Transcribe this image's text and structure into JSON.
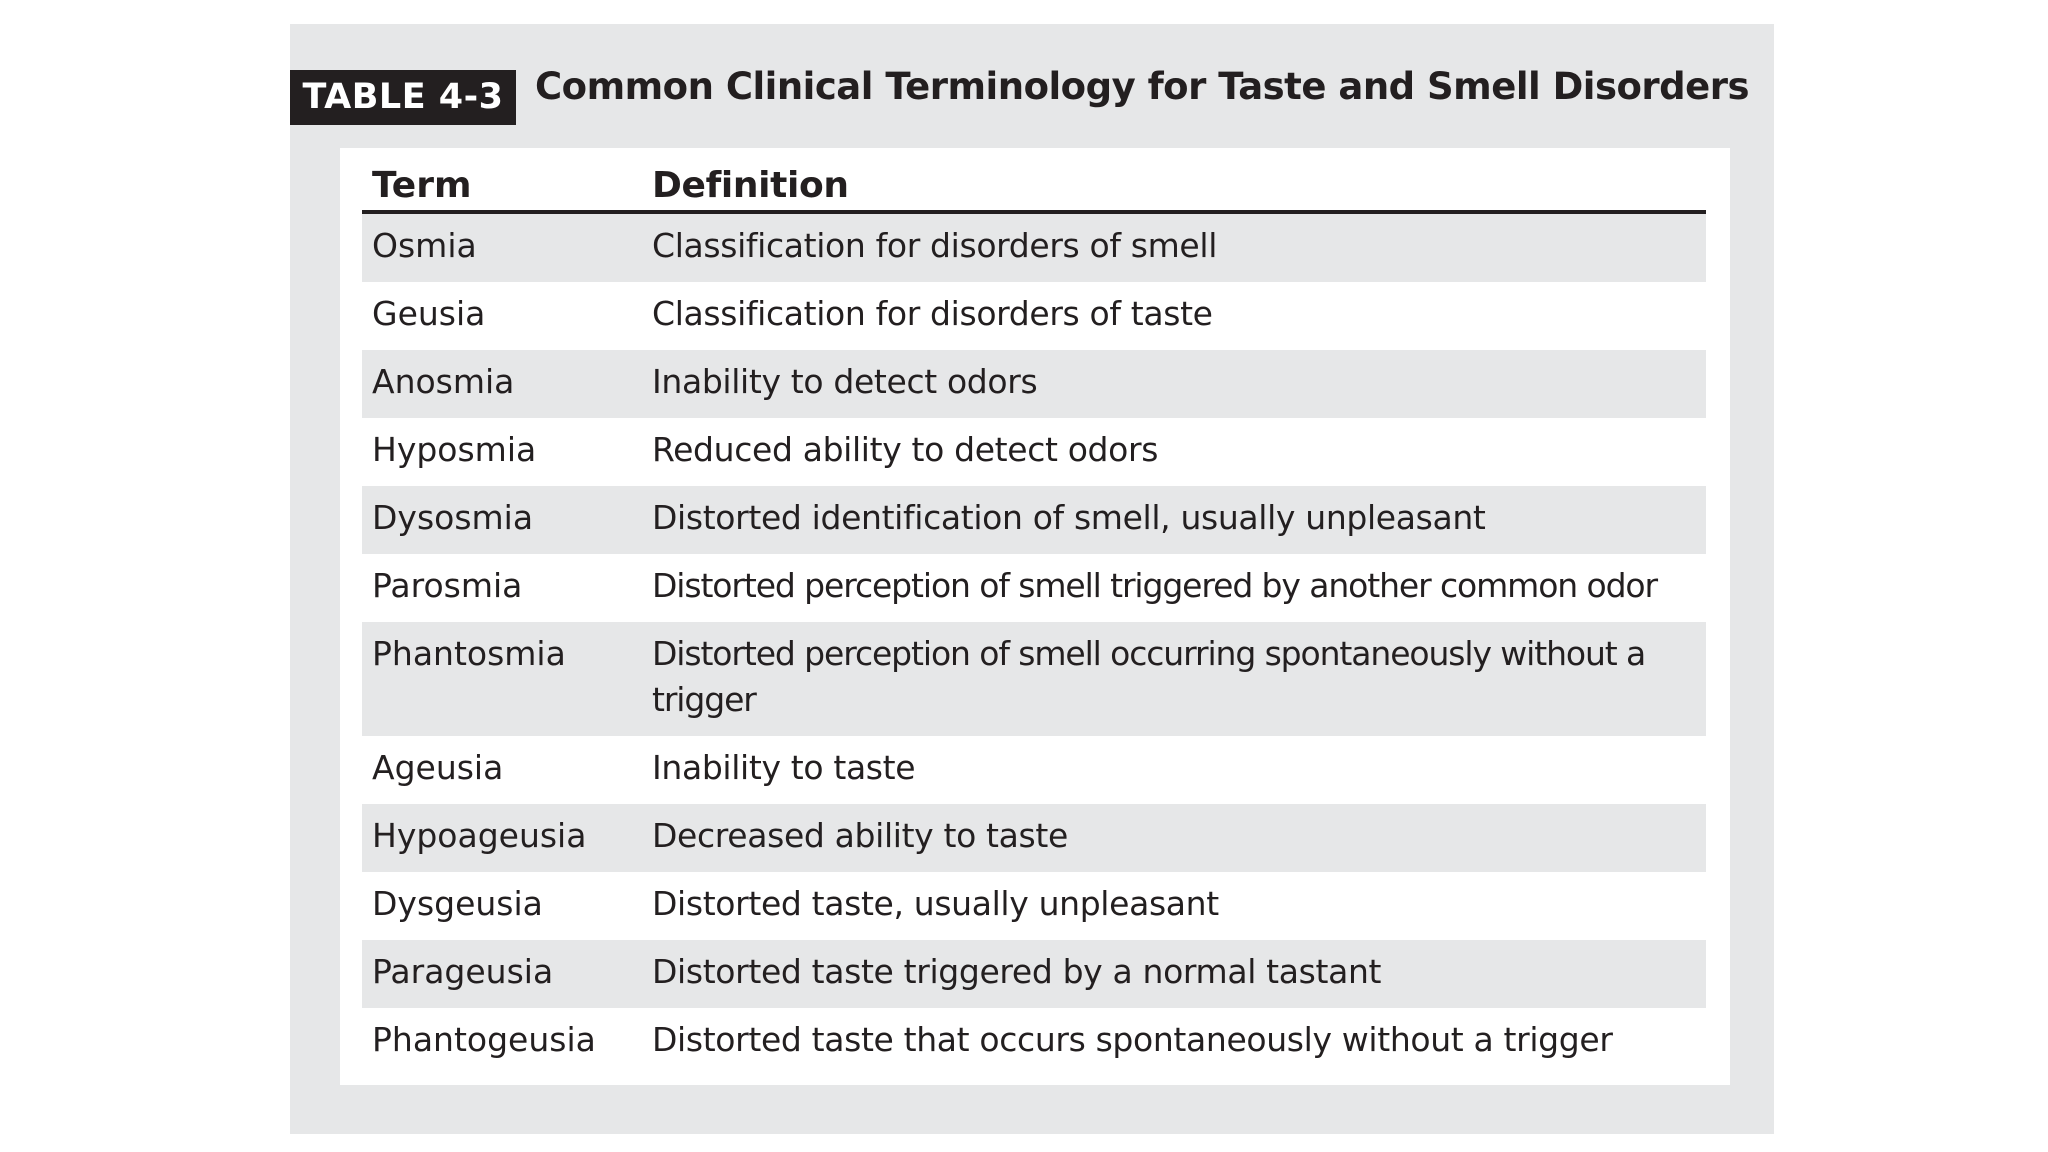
{
  "table": {
    "badge": "TABLE 4-3",
    "title": "Common Clinical Terminology for Taste and Smell Disorders",
    "headers": {
      "term": "Term",
      "definition": "Definition"
    },
    "rows": [
      {
        "term": "Osmia",
        "definition": "Classification for disorders of smell"
      },
      {
        "term": "Geusia",
        "definition": "Classification for disorders of taste"
      },
      {
        "term": "Anosmia",
        "definition": "Inability to detect odors"
      },
      {
        "term": "Hyposmia",
        "definition": "Reduced ability to detect odors"
      },
      {
        "term": "Dysosmia",
        "definition": "Distorted identification of smell, usually unpleasant"
      },
      {
        "term": "Parosmia",
        "definition": "Distorted perception of smell triggered by another common odor"
      },
      {
        "term": "Phantosmia",
        "definition": "Distorted perception of smell occurring spontaneously without a trigger"
      },
      {
        "term": "Ageusia",
        "definition": "Inability to taste"
      },
      {
        "term": "Hypoageusia",
        "definition": "Decreased ability to taste"
      },
      {
        "term": "Dysgeusia",
        "definition": "Distorted taste, usually unpleasant"
      },
      {
        "term": "Parageusia",
        "definition": "Distorted taste triggered by a normal tastant"
      },
      {
        "term": "Phantogeusia",
        "definition": "Distorted taste that occurs spontaneously without a trigger"
      }
    ]
  },
  "colors": {
    "ink": "#231f20",
    "panel": "#e6e7e8",
    "row_shade": "#e6e7e8",
    "card": "#ffffff"
  }
}
